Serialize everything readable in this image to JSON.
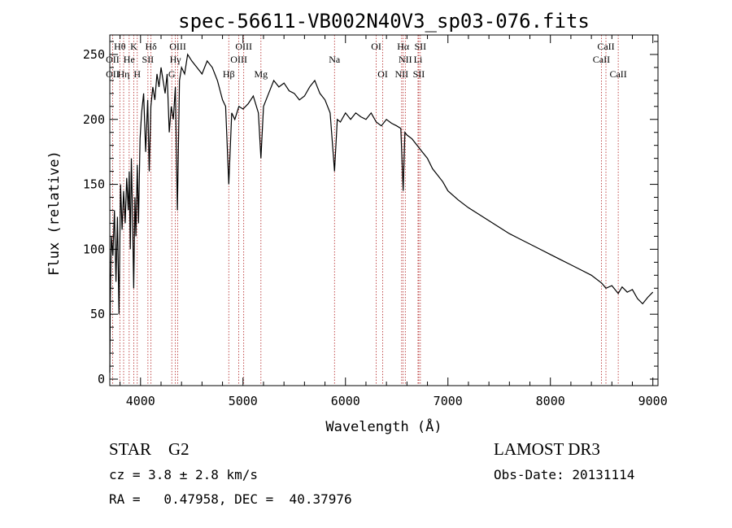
{
  "chart_data": {
    "type": "line",
    "title": "spec-56611-VB002N40V3_sp03-076.fits",
    "xlabel": "Wavelength (Å)",
    "ylabel": "Flux (relative)",
    "xlim": [
      3700,
      9050
    ],
    "ylim": [
      -5,
      265
    ],
    "xticks": [
      4000,
      5000,
      6000,
      7000,
      8000,
      9000
    ],
    "yticks": [
      0,
      50,
      100,
      150,
      200,
      250
    ],
    "x_minor_step": 200,
    "y_minor_step": 10,
    "grid": false,
    "series": [
      {
        "name": "flux",
        "x": [
          3700,
          3705,
          3715,
          3730,
          3745,
          3760,
          3775,
          3790,
          3805,
          3820,
          3835,
          3850,
          3865,
          3880,
          3890,
          3900,
          3910,
          3920,
          3933,
          3945,
          3955,
          3968,
          3980,
          3995,
          4010,
          4030,
          4050,
          4070,
          4085,
          4101,
          4120,
          4140,
          4160,
          4180,
          4200,
          4220,
          4240,
          4260,
          4280,
          4300,
          4320,
          4340,
          4360,
          4380,
          4400,
          4430,
          4460,
          4500,
          4550,
          4600,
          4650,
          4700,
          4750,
          4800,
          4830,
          4861,
          4890,
          4920,
          4960,
          5000,
          5050,
          5100,
          5150,
          5175,
          5200,
          5250,
          5300,
          5350,
          5400,
          5450,
          5500,
          5550,
          5600,
          5650,
          5700,
          5750,
          5800,
          5850,
          5893,
          5920,
          5950,
          6000,
          6050,
          6100,
          6150,
          6200,
          6250,
          6300,
          6350,
          6400,
          6450,
          6500,
          6540,
          6563,
          6580,
          6600,
          6650,
          6700,
          6750,
          6800,
          6850,
          6900,
          6950,
          7000,
          7100,
          7200,
          7300,
          7400,
          7500,
          7600,
          7700,
          7800,
          7900,
          8000,
          8100,
          8200,
          8300,
          8400,
          8500,
          8542,
          8600,
          8662,
          8700,
          8750,
          8800,
          8850,
          8900,
          8950,
          9000
        ],
        "values": [
          5,
          60,
          110,
          95,
          130,
          75,
          125,
          50,
          150,
          115,
          145,
          120,
          155,
          130,
          160,
          100,
          170,
          135,
          70,
          140,
          110,
          165,
          120,
          185,
          205,
          220,
          175,
          215,
          160,
          210,
          225,
          215,
          235,
          225,
          240,
          230,
          220,
          235,
          190,
          210,
          200,
          225,
          130,
          230,
          240,
          235,
          250,
          245,
          240,
          235,
          245,
          240,
          230,
          215,
          210,
          150,
          205,
          200,
          210,
          208,
          212,
          218,
          205,
          170,
          210,
          220,
          230,
          225,
          228,
          222,
          220,
          215,
          218,
          225,
          230,
          220,
          215,
          205,
          160,
          200,
          198,
          205,
          200,
          205,
          202,
          200,
          205,
          198,
          195,
          200,
          197,
          195,
          193,
          145,
          190,
          188,
          185,
          180,
          175,
          170,
          162,
          157,
          152,
          145,
          138,
          132,
          127,
          122,
          117,
          112,
          108,
          104,
          100,
          96,
          92,
          88,
          84,
          80,
          74,
          70,
          72,
          66,
          71,
          67,
          69,
          62,
          58,
          63,
          67
        ]
      }
    ],
    "lines": [
      {
        "label": "Hθ",
        "x": 3798,
        "row": 0
      },
      {
        "label": "K",
        "x": 3934,
        "row": 0
      },
      {
        "label": "Hδ",
        "x": 4102,
        "row": 0
      },
      {
        "label": "OIII",
        "x": 4363,
        "row": 0
      },
      {
        "label": "OIII",
        "x": 5007,
        "row": 0
      },
      {
        "label": "OI",
        "x": 6300,
        "row": 0
      },
      {
        "label": "Hα",
        "x": 6563,
        "row": 0
      },
      {
        "label": "SII",
        "x": 6731,
        "row": 0
      },
      {
        "label": "CaII",
        "x": 8542,
        "row": 0
      },
      {
        "label": "OII",
        "x": 3727,
        "row": 1
      },
      {
        "label": "He",
        "x": 3889,
        "row": 1
      },
      {
        "label": "SII",
        "x": 4072,
        "row": 1
      },
      {
        "label": "Hγ",
        "x": 4340,
        "row": 1
      },
      {
        "label": "OIII",
        "x": 4959,
        "row": 1
      },
      {
        "label": "Na",
        "x": 5893,
        "row": 1
      },
      {
        "label": "NII",
        "x": 6584,
        "row": 1
      },
      {
        "label": "Li",
        "x": 6708,
        "row": 1
      },
      {
        "label": "CaII",
        "x": 8498,
        "row": 1
      },
      {
        "label": "OII",
        "x": 3727,
        "row": 2
      },
      {
        "label": "Hη",
        "x": 3835,
        "row": 2
      },
      {
        "label": "H",
        "x": 3968,
        "row": 2
      },
      {
        "label": "G",
        "x": 4305,
        "row": 2
      },
      {
        "label": "Hβ",
        "x": 4861,
        "row": 2
      },
      {
        "label": "Mg",
        "x": 5175,
        "row": 2
      },
      {
        "label": "OI",
        "x": 6364,
        "row": 2
      },
      {
        "label": "NII",
        "x": 6548,
        "row": 2
      },
      {
        "label": "SII",
        "x": 6716,
        "row": 2
      },
      {
        "label": "CaII",
        "x": 8662,
        "row": 2
      }
    ]
  },
  "info": {
    "object_class": "STAR    G2",
    "survey": "LAMOST DR3",
    "redshift": "cz = 3.8 ± 2.8 km/s",
    "obs_date": "Obs-Date: 20131114",
    "coords": "RA =   0.47958, DEC =  40.37976"
  },
  "colors": {
    "axis": "#000000",
    "spectrum": "#000000",
    "line_marker": "#b22222"
  }
}
